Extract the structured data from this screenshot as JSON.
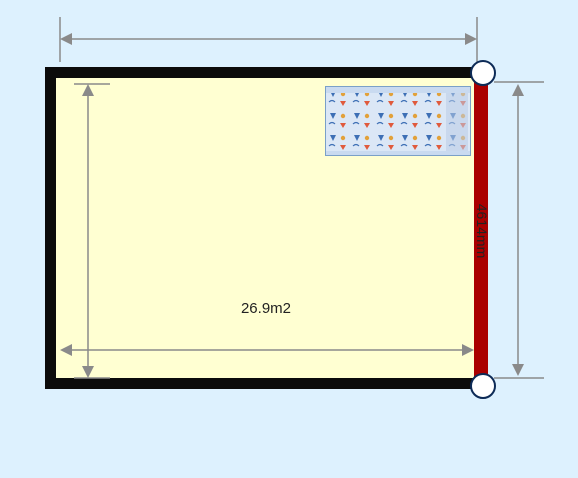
{
  "floorplan": {
    "area_label": "26.9m2",
    "selected_wall_length_label": "4614mm",
    "colors": {
      "background": "#ddf1fe",
      "floor": "#ffffd2",
      "wall": "#0b0b0b",
      "selected_wall": "#aa0000",
      "dimension_line": "#8a8a8a",
      "handle_fill": "#ffffff",
      "handle_stroke": "#0d2b57"
    },
    "furniture": [
      {
        "name": "patterned-rug",
        "icon": "rug-icon"
      }
    ]
  }
}
